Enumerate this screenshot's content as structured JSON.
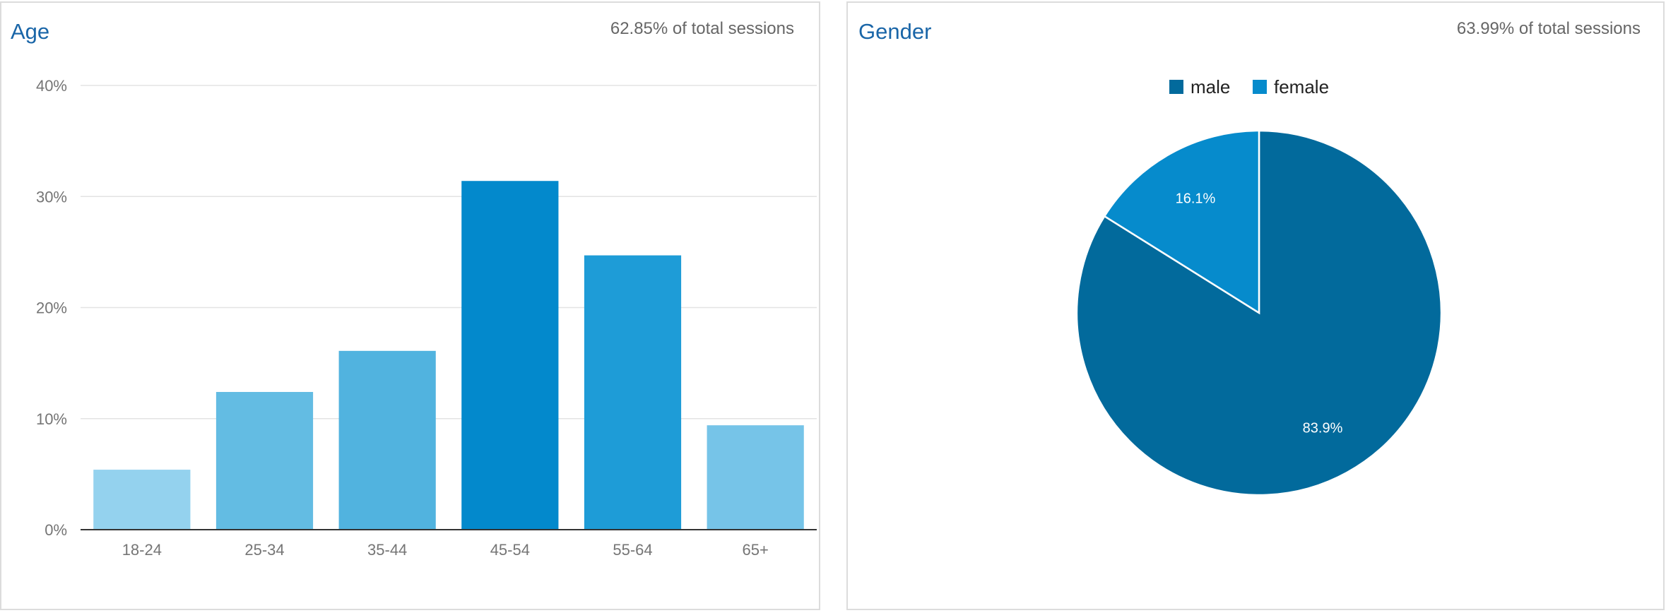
{
  "panels": {
    "age": {
      "title": "Age",
      "subtitle": "62.85% of total sessions"
    },
    "gender": {
      "title": "Gender",
      "subtitle": "63.99% of total sessions"
    }
  },
  "chart_data": [
    {
      "type": "bar",
      "title": "Age",
      "categories": [
        "18-24",
        "25-34",
        "35-44",
        "45-54",
        "55-64",
        "65+"
      ],
      "values": [
        5.4,
        12.4,
        16.1,
        31.4,
        24.7,
        9.4
      ],
      "ylim": [
        0,
        40
      ],
      "yticks": [
        "0%",
        "10%",
        "20%",
        "30%",
        "40%"
      ],
      "bar_colors": [
        "#94d2ee",
        "#63bce3",
        "#51b3df",
        "#0389cc",
        "#1e9cd7",
        "#76c4e8"
      ],
      "grid": true,
      "legend": "none"
    },
    {
      "type": "pie",
      "title": "Gender",
      "slices": [
        {
          "name": "male",
          "value": 83.9,
          "label": "83.9%",
          "color": "#026a9c"
        },
        {
          "name": "female",
          "value": 16.1,
          "label": "16.1%",
          "color": "#068bcc"
        }
      ],
      "legend": "top"
    }
  ]
}
